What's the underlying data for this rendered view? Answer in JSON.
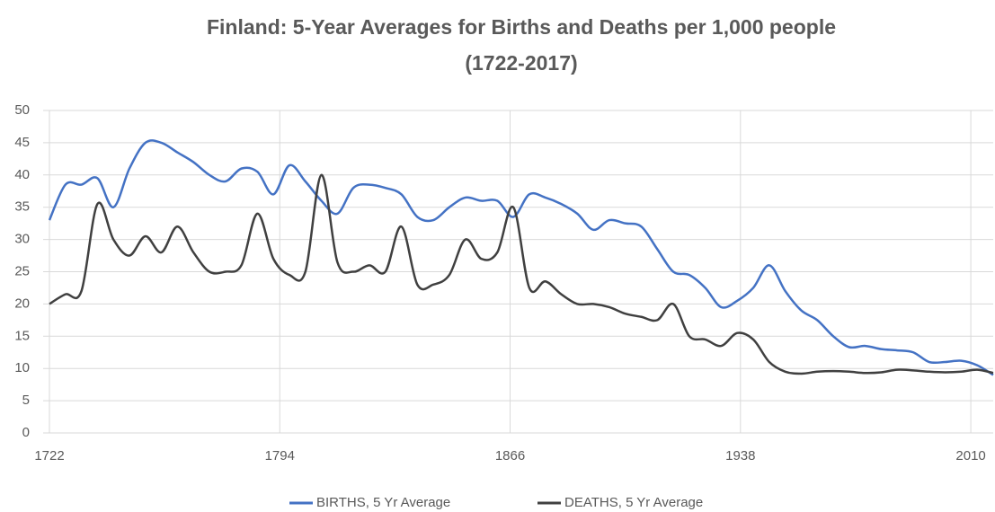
{
  "chart_data": {
    "type": "line",
    "title": [
      "Finland: 5-Year Averages for Births and Deaths per 1,000 people",
      "(1722-2017)"
    ],
    "x": [
      1722,
      1727,
      1732,
      1737,
      1742,
      1747,
      1752,
      1757,
      1762,
      1767,
      1772,
      1777,
      1782,
      1787,
      1792,
      1797,
      1802,
      1807,
      1812,
      1817,
      1822,
      1827,
      1832,
      1837,
      1842,
      1847,
      1852,
      1857,
      1862,
      1867,
      1872,
      1877,
      1882,
      1887,
      1892,
      1897,
      1902,
      1907,
      1912,
      1917,
      1922,
      1927,
      1932,
      1937,
      1942,
      1947,
      1952,
      1957,
      1962,
      1967,
      1972,
      1977,
      1982,
      1987,
      1992,
      1997,
      2002,
      2007,
      2012,
      2017
    ],
    "series": [
      {
        "name": "BIRTHS, 5 Yr Average",
        "color": "#4472c4",
        "values": [
          33,
          38.5,
          38.5,
          39.5,
          35,
          41,
          45,
          45,
          43.5,
          42,
          40,
          39,
          41,
          40.5,
          37,
          41.5,
          39,
          36,
          34,
          38,
          38.5,
          38,
          37,
          33.5,
          33,
          35,
          36.5,
          36,
          36,
          33.5,
          37,
          36.5,
          35.5,
          34,
          31.5,
          33,
          32.5,
          32,
          28.5,
          25,
          24.5,
          22.5,
          19.5,
          20.5,
          22.5,
          26,
          22,
          19,
          17.5,
          15,
          13.3,
          13.5,
          13,
          12.8,
          12.5,
          11,
          11,
          11.2,
          10.5,
          9
        ]
      },
      {
        "name": "DEATHS, 5 Yr Average",
        "color": "#404040",
        "values": [
          20,
          21.5,
          22,
          35.5,
          30,
          27.5,
          30.5,
          28,
          32,
          28,
          25,
          25,
          26,
          34,
          27,
          24.5,
          25,
          40,
          26.5,
          25,
          26,
          25,
          32,
          23,
          23,
          24.5,
          30,
          27,
          28,
          35,
          22.5,
          23.5,
          21.5,
          20,
          20,
          19.5,
          18.5,
          18,
          17.5,
          20,
          15,
          14.5,
          13.5,
          15.5,
          14.5,
          11,
          9.5,
          9.2,
          9.5,
          9.6,
          9.5,
          9.3,
          9.4,
          9.8,
          9.7,
          9.5,
          9.4,
          9.5,
          9.8,
          9.3
        ]
      }
    ],
    "xlim": [
      1722,
      2017
    ],
    "xticks": [
      1722,
      1794,
      1866,
      1938,
      2010
    ],
    "ylim": [
      0,
      50
    ],
    "yticks": [
      0,
      5,
      10,
      15,
      20,
      25,
      30,
      35,
      40,
      45,
      50
    ],
    "grid": true
  }
}
